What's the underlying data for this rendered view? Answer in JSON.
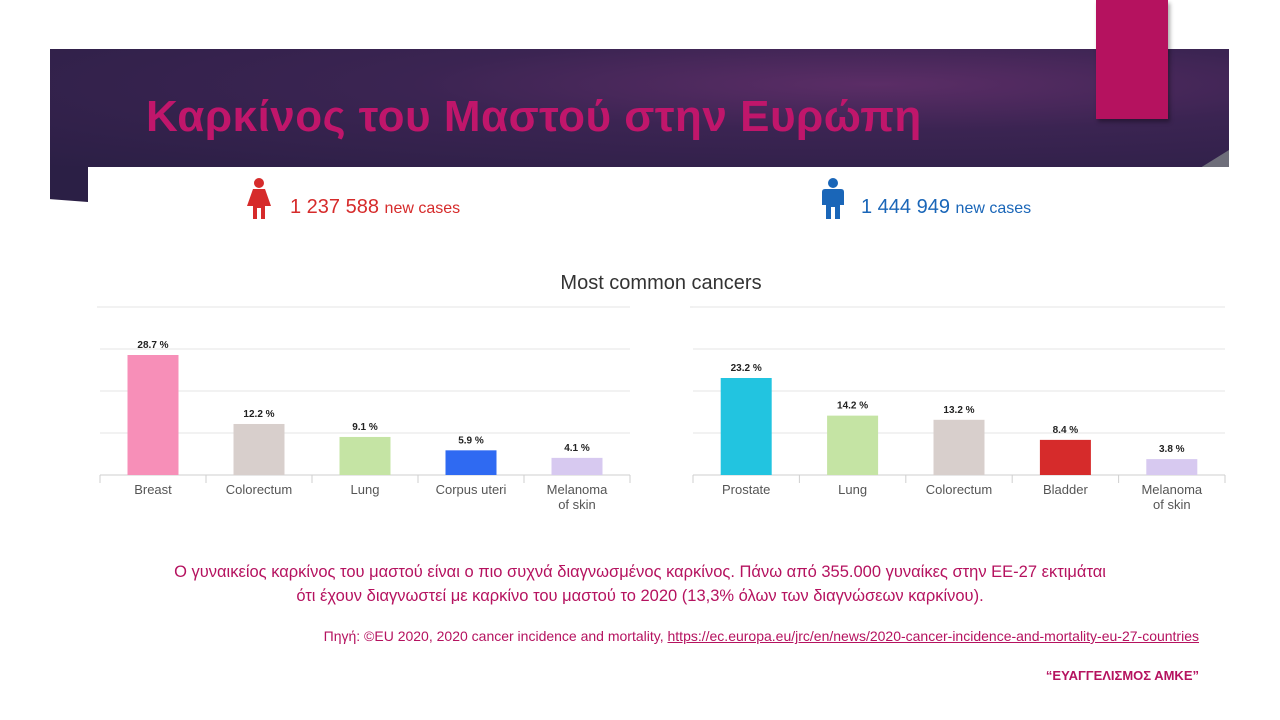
{
  "slide": {
    "title": "Καρκίνος του Μαστού στην Ευρώπη",
    "accent_color": "#b5125f",
    "banner_color": "#2b1f45"
  },
  "female": {
    "icon": "female-person-icon",
    "count": "1 237 588",
    "label": "new cases",
    "color": "#d62b2b"
  },
  "male": {
    "icon": "male-person-icon",
    "count": "1 444 949",
    "label": "new cases",
    "color": "#1a66b8"
  },
  "chart_data": [
    {
      "type": "bar",
      "title": "Most common cancers",
      "categories": [
        "Breast",
        "Colorectum",
        "Lung",
        "Corpus uteri",
        "Melanoma of skin"
      ],
      "values": [
        28.7,
        12.2,
        9.1,
        5.9,
        4.1
      ],
      "data_labels": [
        "28.7 %",
        "12.2 %",
        "9.1 %",
        "5.9 %",
        "4.1 %"
      ],
      "colors": [
        "#f78fb8",
        "#d8cfcc",
        "#c5e4a4",
        "#2f6af2",
        "#d7c9f0"
      ],
      "ylim": [
        0,
        30
      ],
      "grid": true
    },
    {
      "type": "bar",
      "categories": [
        "Prostate",
        "Lung",
        "Colorectum",
        "Bladder",
        "Melanoma of skin"
      ],
      "values": [
        23.2,
        14.2,
        13.2,
        8.4,
        3.8
      ],
      "data_labels": [
        "23.2 %",
        "14.2 %",
        "13.2 %",
        "8.4 %",
        "3.8 %"
      ],
      "colors": [
        "#22c4e0",
        "#c5e4a4",
        "#d8cfcc",
        "#d62b2b",
        "#d7c9f0"
      ],
      "ylim": [
        0,
        30
      ],
      "grid": true
    }
  ],
  "caption": {
    "line1": "Ο γυναικείος καρκίνος του μαστού είναι ο πιο συχνά διαγνωσμένος καρκίνος. Πάνω από 355.000 γυναίκες στην ΕΕ-27 εκτιμάται",
    "line2": "ότι έχουν διαγνωστεί με καρκίνο του μαστού το 2020 (13,3% όλων των διαγνώσεων καρκίνου)."
  },
  "source": {
    "prefix": "Πηγή: ©EU 2020, 2020 cancer incidence and mortality, ",
    "link": "https://ec.europa.eu/jrc/en/news/2020-cancer-incidence-and-mortality-eu-27-countries"
  },
  "org": "“ΕΥΑΓΓΕΛΙΣΜΟΣ ΑΜΚΕ”"
}
